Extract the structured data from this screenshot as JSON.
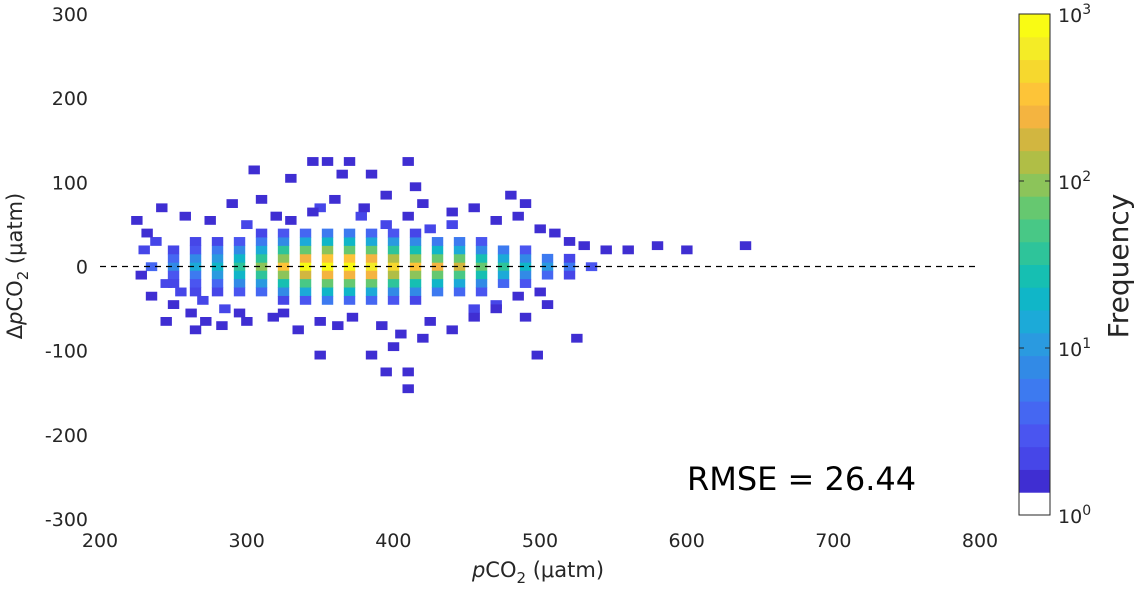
{
  "chart_data": {
    "type": "heatmap",
    "subtype": "2d-histogram",
    "xlabel": {
      "italic": "p",
      "base": "CO",
      "sub": "2",
      "unit": " (μatm)"
    },
    "ylabel": {
      "prefix": "Δ",
      "italic": "p",
      "base": "CO",
      "sub": "2",
      "unit": " (μatm)"
    },
    "xlim": [
      200,
      800
    ],
    "ylim": [
      -300,
      300
    ],
    "xticks": [
      "200",
      "300",
      "400",
      "500",
      "600",
      "700",
      "800"
    ],
    "yticks": [
      "300",
      "200",
      "100",
      "0",
      "-100",
      "-200",
      "-300"
    ],
    "bin_width": {
      "x": 7.5,
      "y": 10
    },
    "reference_line": {
      "y": 0,
      "style": "dashed"
    },
    "annotation": "RMSE = 26.44",
    "colorbar": {
      "label": "Frequency",
      "scale": "log",
      "range": [
        1,
        1000
      ],
      "tick_base": "10",
      "tick_exponents": [
        "3",
        "2",
        "1",
        "0"
      ],
      "colors": [
        "#ffffff",
        "#3f2ed2",
        "#4646e8",
        "#4a55f0",
        "#4567f2",
        "#3d7af0",
        "#328ae6",
        "#2a9ae0",
        "#1caad8",
        "#10b6c8",
        "#16bfb2",
        "#2ec49a",
        "#48c886",
        "#66c870",
        "#8cc45a",
        "#b0be46",
        "#d2b640",
        "#f4b440",
        "#fdc438",
        "#f6d82e",
        "#f4ec26",
        "#f9fb14"
      ]
    },
    "bins": [
      [
        340,
        0,
        900
      ],
      [
        355,
        0,
        750
      ],
      [
        370,
        0,
        850
      ],
      [
        385,
        0,
        650
      ],
      [
        400,
        0,
        420
      ],
      [
        415,
        0,
        360
      ],
      [
        325,
        0,
        330
      ],
      [
        430,
        0,
        220
      ],
      [
        445,
        0,
        160
      ],
      [
        310,
        0,
        95
      ],
      [
        460,
        0,
        70
      ],
      [
        295,
        0,
        40
      ],
      [
        475,
        0,
        38
      ],
      [
        280,
        0,
        22
      ],
      [
        490,
        0,
        20
      ],
      [
        265,
        0,
        14
      ],
      [
        505,
        0,
        10
      ],
      [
        250,
        0,
        8
      ],
      [
        235,
        0,
        4
      ],
      [
        520,
        0,
        5
      ],
      [
        535,
        0,
        3
      ],
      [
        340,
        10,
        230
      ],
      [
        355,
        10,
        310
      ],
      [
        370,
        10,
        300
      ],
      [
        385,
        10,
        250
      ],
      [
        400,
        10,
        140
      ],
      [
        415,
        10,
        110
      ],
      [
        325,
        10,
        110
      ],
      [
        430,
        10,
        75
      ],
      [
        445,
        10,
        60
      ],
      [
        310,
        10,
        40
      ],
      [
        460,
        10,
        30
      ],
      [
        295,
        10,
        22
      ],
      [
        475,
        10,
        16
      ],
      [
        280,
        10,
        12
      ],
      [
        490,
        10,
        9
      ],
      [
        265,
        10,
        7
      ],
      [
        505,
        10,
        5
      ],
      [
        250,
        10,
        4
      ],
      [
        520,
        10,
        2
      ],
      [
        340,
        -10,
        200
      ],
      [
        355,
        -10,
        280
      ],
      [
        370,
        -10,
        270
      ],
      [
        385,
        -10,
        220
      ],
      [
        400,
        -10,
        130
      ],
      [
        415,
        -10,
        100
      ],
      [
        325,
        -10,
        90
      ],
      [
        430,
        -10,
        70
      ],
      [
        445,
        -10,
        50
      ],
      [
        310,
        -10,
        35
      ],
      [
        460,
        -10,
        25
      ],
      [
        295,
        -10,
        18
      ],
      [
        475,
        -10,
        14
      ],
      [
        280,
        -10,
        10
      ],
      [
        490,
        -10,
        7
      ],
      [
        265,
        -10,
        6
      ],
      [
        505,
        -10,
        4
      ],
      [
        250,
        -10,
        3
      ],
      [
        520,
        -10,
        2
      ],
      [
        340,
        20,
        60
      ],
      [
        355,
        20,
        90
      ],
      [
        370,
        20,
        80
      ],
      [
        385,
        20,
        70
      ],
      [
        400,
        20,
        40
      ],
      [
        415,
        20,
        30
      ],
      [
        325,
        20,
        35
      ],
      [
        430,
        20,
        22
      ],
      [
        445,
        20,
        16
      ],
      [
        310,
        20,
        14
      ],
      [
        460,
        20,
        9
      ],
      [
        295,
        20,
        8
      ],
      [
        475,
        20,
        5
      ],
      [
        280,
        20,
        5
      ],
      [
        490,
        20,
        3
      ],
      [
        265,
        20,
        3
      ],
      [
        250,
        20,
        2
      ],
      [
        340,
        -20,
        55
      ],
      [
        355,
        -20,
        80
      ],
      [
        370,
        -20,
        75
      ],
      [
        385,
        -20,
        60
      ],
      [
        400,
        -20,
        35
      ],
      [
        415,
        -20,
        28
      ],
      [
        325,
        -20,
        30
      ],
      [
        430,
        -20,
        20
      ],
      [
        445,
        -20,
        14
      ],
      [
        310,
        -20,
        12
      ],
      [
        460,
        -20,
        8
      ],
      [
        295,
        -20,
        7
      ],
      [
        475,
        -20,
        4
      ],
      [
        280,
        -20,
        4
      ],
      [
        490,
        -20,
        3
      ],
      [
        265,
        -20,
        3
      ],
      [
        250,
        -20,
        2
      ],
      [
        340,
        30,
        15
      ],
      [
        355,
        30,
        22
      ],
      [
        370,
        30,
        20
      ],
      [
        385,
        30,
        16
      ],
      [
        400,
        30,
        10
      ],
      [
        415,
        30,
        8
      ],
      [
        325,
        30,
        9
      ],
      [
        430,
        30,
        6
      ],
      [
        445,
        30,
        5
      ],
      [
        310,
        30,
        5
      ],
      [
        460,
        30,
        3
      ],
      [
        295,
        30,
        3
      ],
      [
        280,
        30,
        2
      ],
      [
        265,
        30,
        2
      ],
      [
        340,
        -30,
        14
      ],
      [
        355,
        -30,
        20
      ],
      [
        370,
        -30,
        18
      ],
      [
        385,
        -30,
        14
      ],
      [
        400,
        -30,
        9
      ],
      [
        415,
        -30,
        7
      ],
      [
        325,
        -30,
        8
      ],
      [
        430,
        -30,
        6
      ],
      [
        445,
        -30,
        4
      ],
      [
        310,
        -30,
        4
      ],
      [
        460,
        -30,
        3
      ],
      [
        295,
        -30,
        3
      ],
      [
        280,
        -30,
        2
      ],
      [
        265,
        -30,
        2
      ],
      [
        355,
        40,
        6
      ],
      [
        370,
        40,
        5
      ],
      [
        385,
        40,
        4
      ],
      [
        340,
        40,
        4
      ],
      [
        400,
        40,
        3
      ],
      [
        325,
        40,
        3
      ],
      [
        415,
        40,
        2
      ],
      [
        310,
        40,
        2
      ],
      [
        355,
        -40,
        5
      ],
      [
        370,
        -40,
        4
      ],
      [
        385,
        -40,
        4
      ],
      [
        340,
        -40,
        3
      ],
      [
        400,
        -40,
        3
      ],
      [
        325,
        -40,
        2
      ],
      [
        415,
        -40,
        2
      ],
      [
        230,
        20,
        2
      ],
      [
        238,
        30,
        2
      ],
      [
        245,
        -20,
        2
      ],
      [
        255,
        -30,
        2
      ],
      [
        270,
        -40,
        2
      ],
      [
        285,
        -50,
        2
      ],
      [
        300,
        50,
        2
      ],
      [
        320,
        60,
        2
      ],
      [
        350,
        70,
        2
      ],
      [
        360,
        80,
        1
      ],
      [
        378,
        60,
        2
      ],
      [
        395,
        50,
        2
      ],
      [
        410,
        60,
        1
      ],
      [
        425,
        45,
        2
      ],
      [
        440,
        50,
        2
      ],
      [
        455,
        -50,
        2
      ],
      [
        470,
        -45,
        2
      ],
      [
        485,
        -35,
        1
      ],
      [
        500,
        -30,
        1
      ],
      [
        510,
        40,
        1
      ],
      [
        520,
        30,
        1
      ],
      [
        530,
        25,
        1
      ],
      [
        545,
        20,
        1
      ],
      [
        560,
        20,
        1
      ],
      [
        580,
        25,
        1
      ],
      [
        225,
        55,
        1
      ],
      [
        232,
        40,
        1
      ],
      [
        242,
        70,
        1
      ],
      [
        258,
        60,
        1
      ],
      [
        275,
        55,
        1
      ],
      [
        290,
        75,
        1
      ],
      [
        310,
        80,
        1
      ],
      [
        320,
        60,
        1
      ],
      [
        330,
        55,
        1
      ],
      [
        345,
        65,
        1
      ],
      [
        380,
        70,
        1
      ],
      [
        395,
        85,
        1
      ],
      [
        420,
        75,
        1
      ],
      [
        440,
        65,
        1
      ],
      [
        455,
        70,
        1
      ],
      [
        470,
        55,
        1
      ],
      [
        485,
        60,
        1
      ],
      [
        500,
        45,
        1
      ],
      [
        228,
        -10,
        1
      ],
      [
        235,
        -35,
        1
      ],
      [
        250,
        -45,
        1
      ],
      [
        262,
        -55,
        1
      ],
      [
        272,
        -65,
        1
      ],
      [
        283,
        -70,
        1
      ],
      [
        295,
        -55,
        1
      ],
      [
        318,
        -60,
        1
      ],
      [
        335,
        -75,
        1
      ],
      [
        350,
        -65,
        1
      ],
      [
        362,
        -70,
        1
      ],
      [
        372,
        -60,
        1
      ],
      [
        392,
        -70,
        1
      ],
      [
        405,
        -80,
        1
      ],
      [
        425,
        -65,
        1
      ],
      [
        440,
        -75,
        1
      ],
      [
        455,
        -60,
        1
      ],
      [
        470,
        -50,
        1
      ],
      [
        490,
        -60,
        1
      ],
      [
        505,
        -45,
        1
      ],
      [
        245,
        -65,
        1
      ],
      [
        265,
        -75,
        1
      ],
      [
        300,
        -65,
        1
      ],
      [
        325,
        -55,
        1
      ],
      [
        345,
        125,
        1
      ],
      [
        355,
        125,
        1
      ],
      [
        370,
        125,
        1
      ],
      [
        330,
        105,
        1
      ],
      [
        365,
        110,
        1
      ],
      [
        385,
        110,
        1
      ],
      [
        410,
        125,
        1
      ],
      [
        305,
        115,
        1
      ],
      [
        415,
        95,
        1
      ],
      [
        480,
        85,
        1
      ],
      [
        490,
        75,
        1
      ],
      [
        350,
        -105,
        1
      ],
      [
        385,
        -105,
        1
      ],
      [
        400,
        -95,
        1
      ],
      [
        420,
        -85,
        1
      ],
      [
        498,
        -105,
        1
      ],
      [
        525,
        -85,
        1
      ],
      [
        395,
        -125,
        1
      ],
      [
        410,
        -125,
        1
      ],
      [
        410,
        -145,
        1
      ],
      [
        640,
        25,
        1
      ],
      [
        600,
        20,
        1
      ]
    ]
  }
}
